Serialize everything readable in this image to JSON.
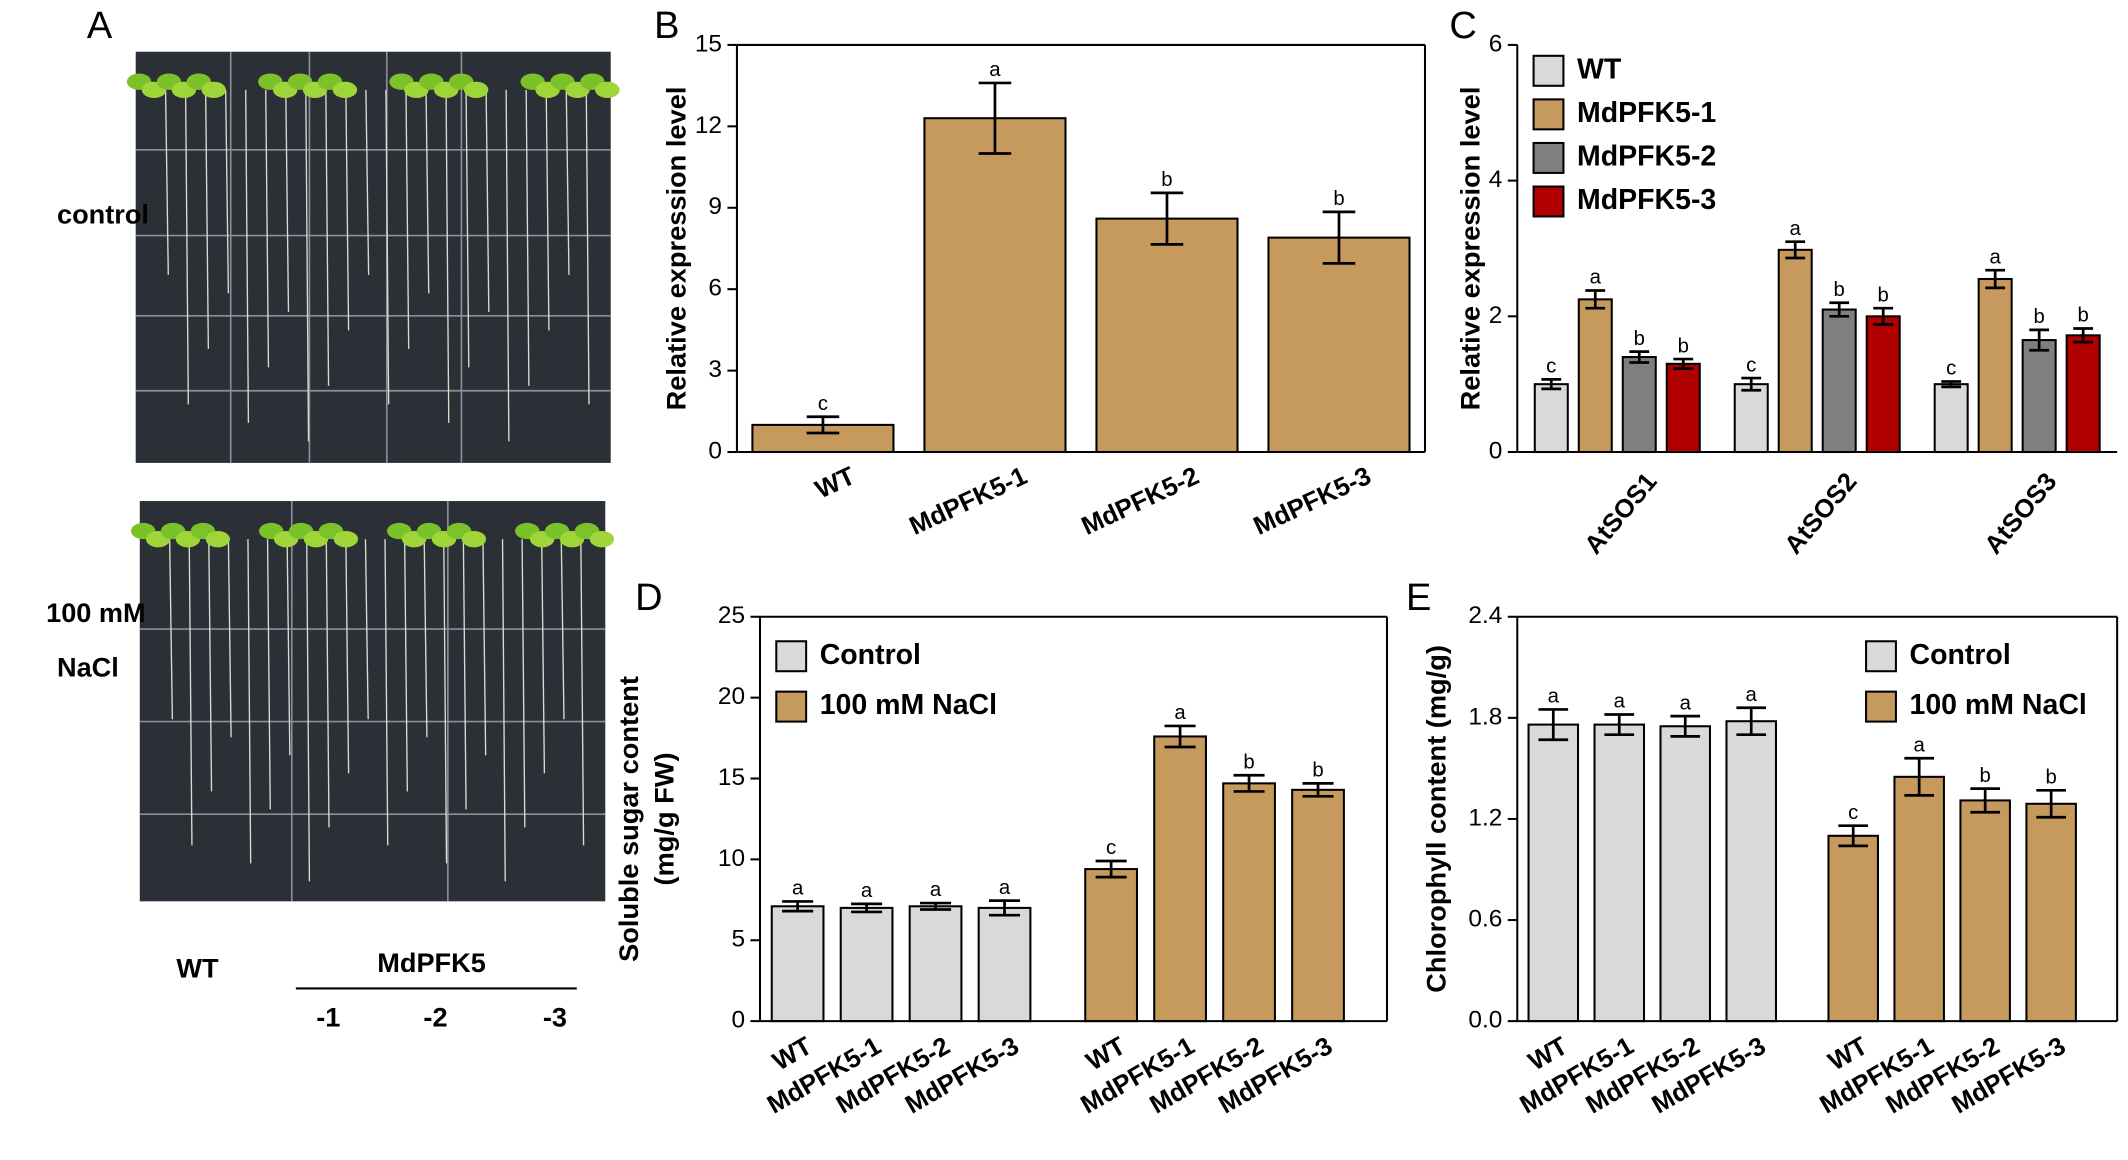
{
  "panel_a": {
    "label": "A",
    "control_label": "control",
    "salt_label": [
      "100 mM",
      "NaCl"
    ],
    "wt_label": "WT",
    "line_label": "MdPFK5",
    "line_numbers": [
      "-1",
      "-2",
      "-3"
    ]
  },
  "chart_data": [
    {
      "type": "bar",
      "panel": "B",
      "ylabel": [
        "Relative expression level"
      ],
      "frame": "box",
      "categories": [
        "WT",
        "MdPFK5-1",
        "MdPFK5-2",
        "MdPFK5-3"
      ],
      "color": "#c59a5c",
      "values": [
        1.0,
        12.3,
        8.6,
        7.9
      ],
      "errors": [
        0.3,
        1.3,
        0.95,
        0.95
      ],
      "letters": [
        "c",
        "a",
        "b",
        "b"
      ],
      "ylim": [
        0,
        15
      ],
      "yticks": [
        0,
        3,
        6,
        9,
        12,
        15
      ]
    },
    {
      "type": "grouped",
      "panel": "C",
      "ylabel": [
        "Relative expression level"
      ],
      "frame": "open",
      "legend": "upper left",
      "categories": [
        "AtSOS1",
        "AtSOS2",
        "AtSOS3"
      ],
      "series": [
        {
          "name": "WT",
          "color": "#d9d9d9",
          "values": [
            1.0,
            1.0,
            1.0
          ],
          "errors": [
            0.07,
            0.09,
            0.04
          ],
          "letters": [
            "c",
            "c",
            "c"
          ]
        },
        {
          "name": "MdPFK5-1",
          "color": "#c59a5c",
          "values": [
            2.25,
            2.98,
            2.55
          ],
          "errors": [
            0.13,
            0.12,
            0.13
          ],
          "letters": [
            "a",
            "a",
            "a"
          ]
        },
        {
          "name": "MdPFK5-2",
          "color": "#7f7f7f",
          "values": [
            1.4,
            2.1,
            1.65
          ],
          "errors": [
            0.08,
            0.1,
            0.15
          ],
          "letters": [
            "b",
            "b",
            "b"
          ]
        },
        {
          "name": "MdPFK5-3",
          "color": "#b00000",
          "values": [
            1.3,
            2.0,
            1.72
          ],
          "errors": [
            0.07,
            0.12,
            0.1
          ],
          "letters": [
            "b",
            "b",
            "b"
          ]
        }
      ],
      "ylim": [
        0,
        6
      ],
      "yticks": [
        0,
        2,
        4,
        6
      ]
    },
    {
      "type": "blocked",
      "panel": "D",
      "ylabel": [
        "Soluble sugar content",
        "(mg/g FW)"
      ],
      "frame": "box",
      "legend": "upper left",
      "categories": [
        "WT",
        "MdPFK5-1",
        "MdPFK5-2",
        "MdPFK5-3"
      ],
      "series": [
        {
          "name": "Control",
          "color": "#d9d9d9",
          "values": [
            7.1,
            7.0,
            7.1,
            7.0
          ],
          "errors": [
            0.3,
            0.25,
            0.2,
            0.45
          ],
          "letters": [
            "a",
            "a",
            "a",
            "a"
          ]
        },
        {
          "name": "100 mM NaCl",
          "color": "#c59a5c",
          "values": [
            9.4,
            17.6,
            14.7,
            14.3
          ],
          "errors": [
            0.5,
            0.65,
            0.5,
            0.4
          ],
          "letters": [
            "c",
            "a",
            "b",
            "b"
          ]
        }
      ],
      "ylim": [
        0,
        25
      ],
      "yticks": [
        0,
        5,
        10,
        15,
        20,
        25
      ]
    },
    {
      "type": "blocked",
      "panel": "E",
      "ylabel": [
        "Chlorophyll content (mg/g)"
      ],
      "frame": "box",
      "legend": "upper right",
      "categories": [
        "WT",
        "MdPFK5-1",
        "MdPFK5-2",
        "MdPFK5-3"
      ],
      "series": [
        {
          "name": "Control",
          "color": "#d9d9d9",
          "values": [
            1.76,
            1.76,
            1.75,
            1.78
          ],
          "errors": [
            0.09,
            0.06,
            0.06,
            0.08
          ],
          "letters": [
            "a",
            "a",
            "a",
            "a"
          ]
        },
        {
          "name": "100 mM NaCl",
          "color": "#c59a5c",
          "values": [
            1.1,
            1.45,
            1.31,
            1.29
          ],
          "errors": [
            0.06,
            0.11,
            0.07,
            0.08
          ],
          "letters": [
            "c",
            "a",
            "b",
            "b"
          ]
        }
      ],
      "ylim": [
        0,
        2.4
      ],
      "yticks": [
        {
          "value": 0,
          "label": "0.0"
        },
        0.6,
        1.2,
        1.8,
        2.4
      ]
    }
  ]
}
